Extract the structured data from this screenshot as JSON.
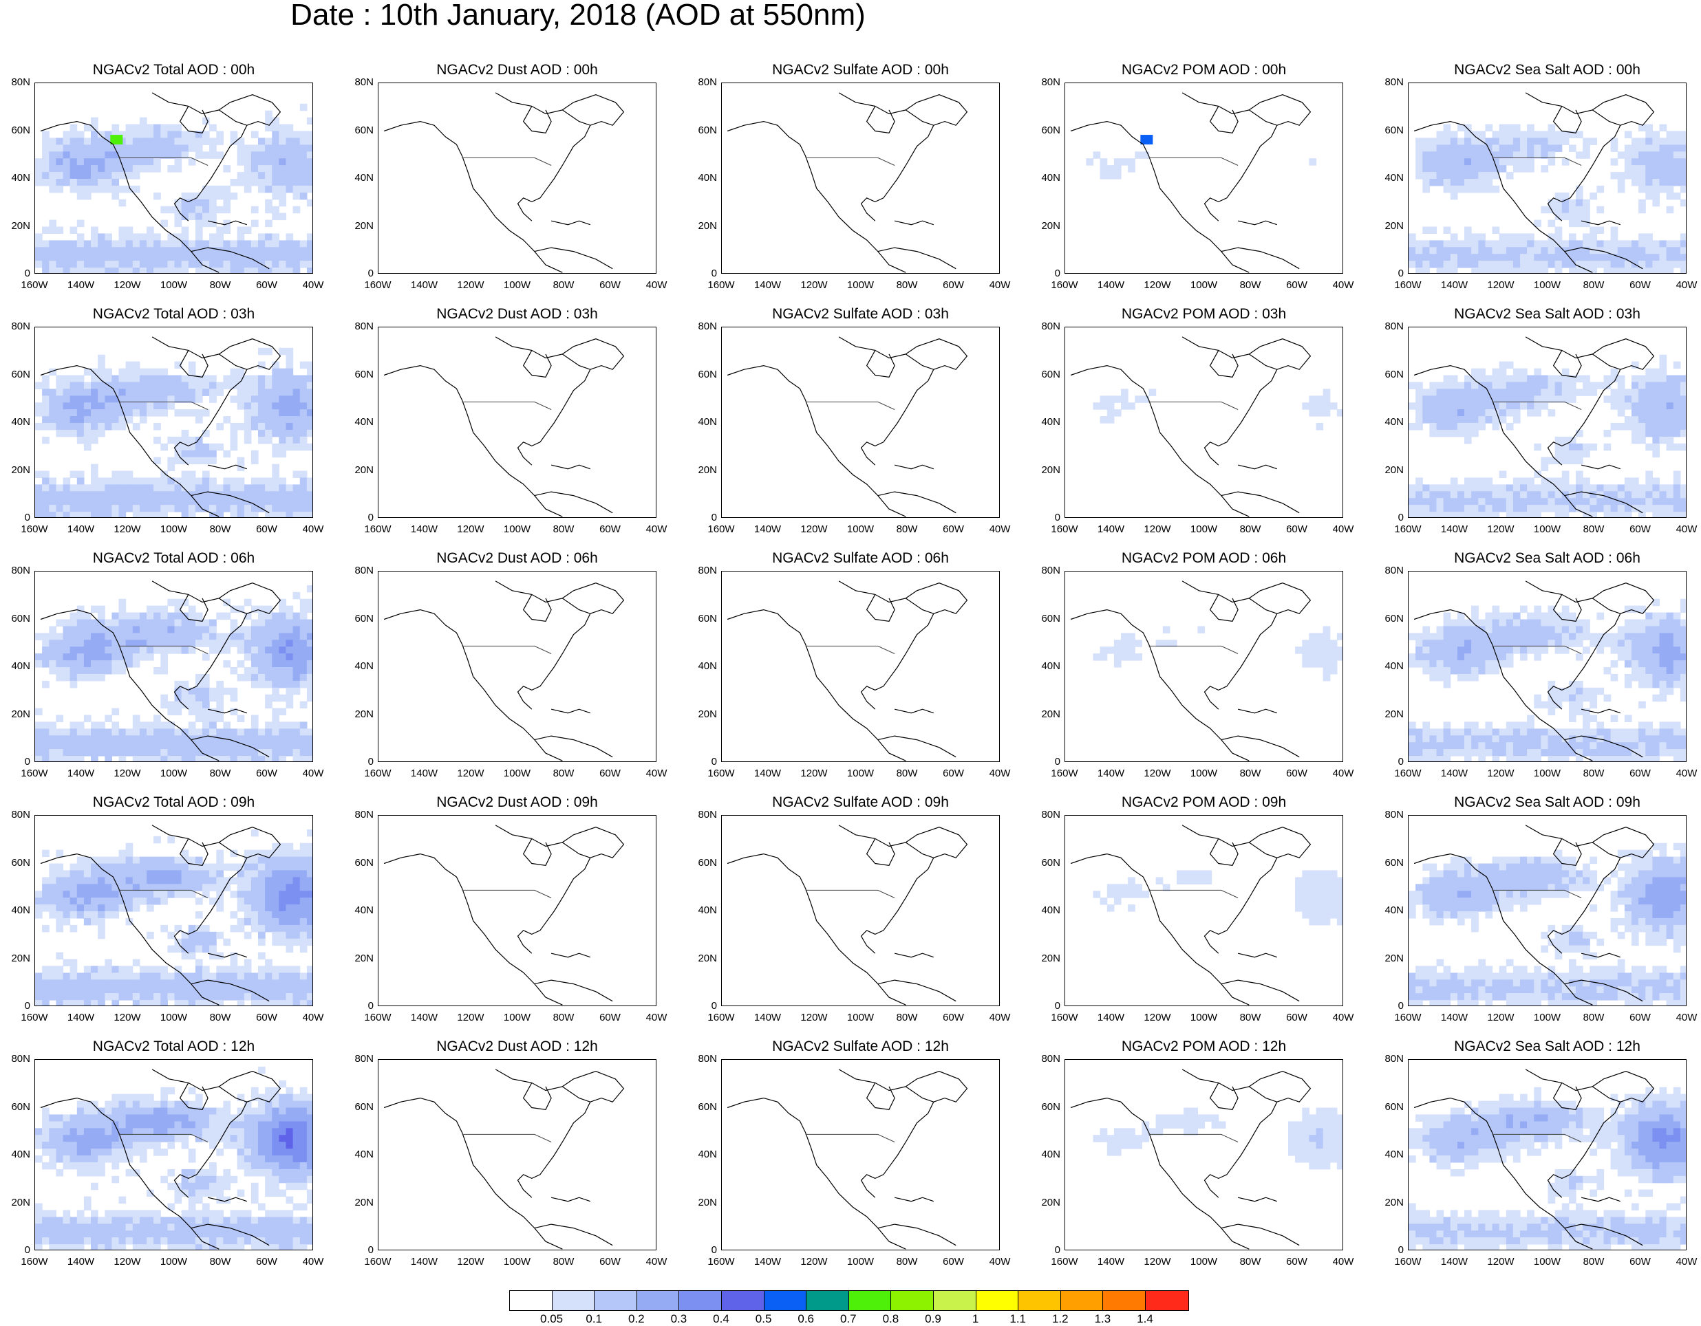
{
  "title": "Date : 10th January, 2018 (AOD at 550nm)",
  "lat_labels": [
    "80N",
    "60N",
    "40N",
    "20N",
    "0"
  ],
  "lon_labels": [
    "160W",
    "140W",
    "120W",
    "100W",
    "80W",
    "60W",
    "40W"
  ],
  "species": [
    {
      "key": "total",
      "name": "Total AOD",
      "intensity": 1.0
    },
    {
      "key": "dust",
      "name": "Dust AOD",
      "intensity": 0.05
    },
    {
      "key": "sulfate",
      "name": "Sulfate AOD",
      "intensity": 0.1
    },
    {
      "key": "pom",
      "name": "POM AOD",
      "intensity": 0.25
    },
    {
      "key": "seasalt",
      "name": "Sea Salt AOD",
      "intensity": 0.8
    }
  ],
  "panel_titles": [
    [
      "NGACv2 Total AOD : 00h",
      "NGACv2 Dust AOD : 00h",
      "NGACv2 Sulfate AOD : 00h",
      "NGACv2 POM AOD : 00h",
      "NGACv2 Sea Salt AOD : 00h"
    ],
    [
      "NGACv2 Total AOD : 03h",
      "NGACv2 Dust AOD : 03h",
      "NGACv2 Sulfate AOD : 03h",
      "NGACv2 POM AOD : 03h",
      "NGACv2 Sea Salt AOD : 03h"
    ],
    [
      "NGACv2 Total AOD : 06h",
      "NGACv2 Dust AOD : 06h",
      "NGACv2 Sulfate AOD : 06h",
      "NGACv2 POM AOD : 06h",
      "NGACv2 Sea Salt AOD : 06h"
    ],
    [
      "NGACv2 Total AOD : 09h",
      "NGACv2 Dust AOD : 09h",
      "NGACv2 Sulfate AOD : 09h",
      "NGACv2 POM AOD : 09h",
      "NGACv2 Sea Salt  AOD : 09h"
    ],
    [
      "NGACv2 Total AOD  : 12h",
      "NGACv2 Dust AOD : 12h",
      "NGACv2 Sulfate AOD : 12h",
      "NGACv2 POM  AOD : 12h",
      "NGACv2 Sea Salt  AOD : 12h"
    ]
  ],
  "colorbar": {
    "colors": [
      "#ffffff",
      "#d5e0fb",
      "#b5c7f8",
      "#95acf4",
      "#7b90f0",
      "#5f63ea",
      "#0a5ff5",
      "#009a8a",
      "#4ef00a",
      "#8cf200",
      "#c9f24a",
      "#ffff00",
      "#ffc400",
      "#ff9f00",
      "#ff7a00",
      "#ff2a1a"
    ],
    "labels": [
      "0.05",
      "0.1",
      "0.2",
      "0.3",
      "0.4",
      "0.5",
      "0.6",
      "0.7",
      "0.8",
      "0.9",
      "1",
      "1.1",
      "1.2",
      "1.3",
      "1.4"
    ]
  }
}
